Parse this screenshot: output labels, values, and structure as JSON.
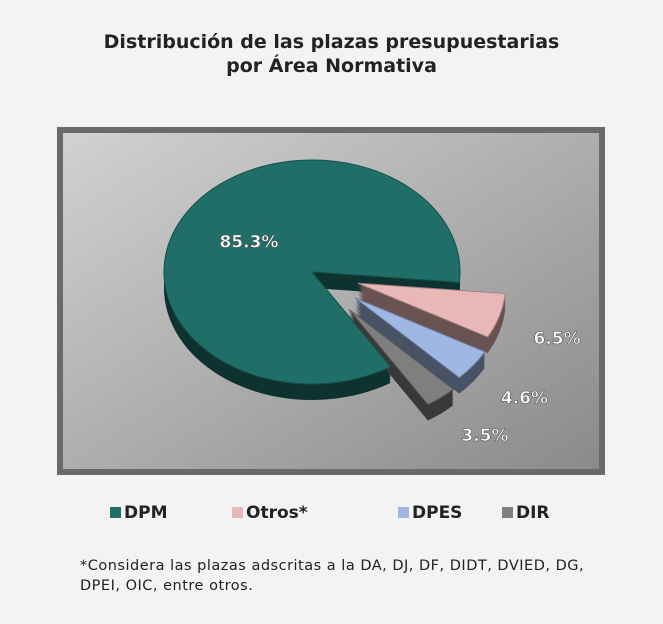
{
  "chart_data": {
    "type": "pie",
    "title": "Distribución de las plazas presupuestarias por Área Normativa",
    "categories": [
      "DPM",
      "Otros*",
      "DPES",
      "DIR"
    ],
    "values": [
      85.3,
      6.5,
      4.6,
      3.5
    ],
    "value_labels": [
      "85.3%",
      "6.5%",
      "4.6%",
      "3.5%"
    ],
    "colors": [
      "#1f6f68",
      "#e8b7b7",
      "#9fb7e2",
      "#7f7f7f"
    ],
    "legend": "bottom",
    "footnote": "*Considera las plazas adscritas a la DA, DJ, DF, DIDT, DVIED, DG, DPEI, OIC, entre otros."
  }
}
